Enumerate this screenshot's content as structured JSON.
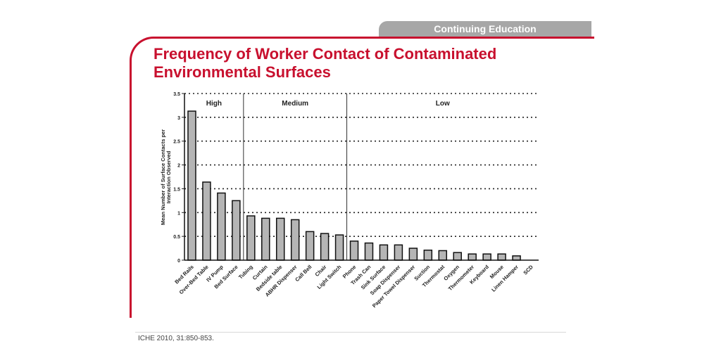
{
  "header": {
    "banner_label": "Continuing Education",
    "title_line1": "Frequency of Worker Contact of Contaminated",
    "title_line2": "Environmental Surfaces",
    "accent_color": "#c8102e",
    "banner_color": "#a7a7a7"
  },
  "chart_data": {
    "type": "bar",
    "title": "Frequency of Worker Contact of Contaminated Environmental Surfaces",
    "ylabel": "Mean Number of Surface Contacts per Interaction Observed",
    "xlabel": "",
    "ylim": [
      0,
      3.5
    ],
    "y_ticks": [
      "0",
      "0.5",
      "1",
      "1.5",
      "2",
      "2.5",
      "3",
      "3.5"
    ],
    "y_tick_values": [
      0,
      0.5,
      1,
      1.5,
      2,
      2.5,
      3,
      3.5
    ],
    "grid": "horizontal dashed",
    "bar_color": "#b5b5b5",
    "categories": [
      "Bed Rails",
      "Over-Bed Table",
      "IV Pump",
      "Bed Surface",
      "Tubing",
      "Curtain",
      "Bedside table",
      "ABHR Dispenser",
      "Call Bell",
      "Chair",
      "Light Switch",
      "Phone",
      "Trash Can",
      "Sink Surface",
      "Soap Dispenser",
      "Paper Towel Dispenser",
      "Suction",
      "Thermostat",
      "Oxygen",
      "Thermometer",
      "Keyboard",
      "Mouse",
      "Linen Hamper",
      "SCD"
    ],
    "values": [
      3.13,
      1.64,
      1.41,
      1.25,
      0.93,
      0.88,
      0.88,
      0.85,
      0.6,
      0.56,
      0.53,
      0.4,
      0.36,
      0.32,
      0.32,
      0.25,
      0.21,
      0.2,
      0.16,
      0.13,
      0.13,
      0.13,
      0.09,
      0.0
    ],
    "groups": [
      {
        "name": "High",
        "start": 0,
        "end": 3
      },
      {
        "name": "Medium",
        "start": 4,
        "end": 10
      },
      {
        "name": "Low",
        "start": 11,
        "end": 23
      }
    ]
  },
  "footer": {
    "citation": "ICHE 2010, 31:850-853."
  }
}
